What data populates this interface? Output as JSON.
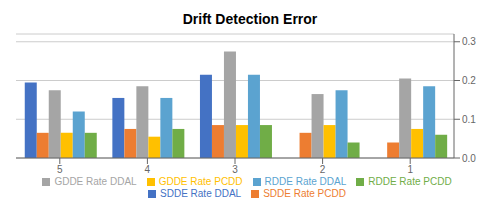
{
  "chart_data": {
    "type": "bar",
    "title": "Drift Detection Error",
    "categories": [
      "5",
      "4",
      "3",
      "2",
      "1"
    ],
    "series": [
      {
        "name": "SDDE Rate DDAL",
        "color": "#4472C4",
        "values": [
          0.195,
          0.155,
          0.215,
          0.0,
          0.0
        ]
      },
      {
        "name": "SDDE Rate PCDD",
        "color": "#ED7D31",
        "values": [
          0.065,
          0.075,
          0.085,
          0.065,
          0.04
        ]
      },
      {
        "name": "GDDE Rate DDAL",
        "color": "#A5A5A5",
        "values": [
          0.175,
          0.185,
          0.275,
          0.165,
          0.205
        ]
      },
      {
        "name": "GDDE Rate PCDD",
        "color": "#FFC000",
        "values": [
          0.065,
          0.055,
          0.085,
          0.085,
          0.075
        ]
      },
      {
        "name": "RDDE Rate DDAL",
        "color": "#5BA3D0",
        "values": [
          0.12,
          0.155,
          0.215,
          0.175,
          0.185
        ]
      },
      {
        "name": "RDDE Rate PCDD",
        "color": "#70AD47",
        "values": [
          0.065,
          0.075,
          0.085,
          0.04,
          0.06
        ]
      }
    ],
    "ylim": [
      0,
      0.32
    ],
    "yticks": [
      {
        "value": 0,
        "label": "0.0"
      },
      0.1,
      0.2,
      0.3
    ],
    "grid": true,
    "legend": "bottom"
  }
}
